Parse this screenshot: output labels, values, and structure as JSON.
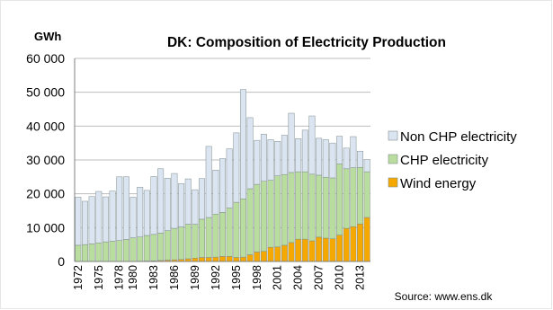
{
  "chart_data": {
    "type": "bar",
    "stacked": true,
    "title": "DK: Composition of Electricity Production",
    "ylabel": "GWh",
    "xlabel": "",
    "ylim": [
      0,
      60000
    ],
    "yticks": [
      0,
      10000,
      20000,
      30000,
      40000,
      50000,
      60000
    ],
    "ytick_labels": [
      "0",
      "10 000",
      "20 000",
      "30 000",
      "40 000",
      "50 000",
      "60 000"
    ],
    "grid": true,
    "legend_position": "right",
    "source": "Source: www.ens.dk",
    "categories": [
      "1972",
      "1973",
      "1974",
      "1975",
      "1976",
      "1977",
      "1978",
      "1979",
      "1980",
      "1981",
      "1982",
      "1983",
      "1984",
      "1985",
      "1986",
      "1987",
      "1988",
      "1989",
      "1990",
      "1991",
      "1992",
      "1993",
      "1994",
      "1995",
      "1996",
      "1997",
      "1998",
      "1999",
      "2000",
      "2001",
      "2002",
      "2003",
      "2004",
      "2005",
      "2006",
      "2007",
      "2008",
      "2009",
      "2010",
      "2011",
      "2012",
      "2013",
      "2014"
    ],
    "xtick_labels": [
      "1972",
      "1975",
      "1978",
      "1980",
      "1983",
      "1986",
      "1989",
      "1992",
      "1995",
      "1998",
      "2001",
      "2004",
      "2007",
      "2010",
      "2013"
    ],
    "series": [
      {
        "name": "Wind energy",
        "color": "#f5a800",
        "values": [
          0,
          0,
          0,
          0,
          0,
          0,
          10,
          20,
          50,
          100,
          150,
          200,
          300,
          400,
          500,
          600,
          800,
          1000,
          1200,
          1200,
          1300,
          1500,
          1500,
          1200,
          1300,
          2000,
          2800,
          3000,
          4200,
          4300,
          4800,
          5600,
          6600,
          6600,
          6100,
          7200,
          6900,
          6700,
          7800,
          9800,
          10300,
          11100,
          13000
        ]
      },
      {
        "name": "CHP electricity",
        "color": "#b9dd9f",
        "values": [
          4800,
          5000,
          5200,
          5500,
          5800,
          6000,
          6200,
          6500,
          6950,
          7150,
          7550,
          7800,
          8100,
          8700,
          9300,
          9600,
          10200,
          10000,
          11300,
          11800,
          12700,
          13000,
          14300,
          16300,
          17200,
          19500,
          20000,
          20700,
          19800,
          21000,
          20900,
          20700,
          19900,
          19900,
          19700,
          18300,
          18000,
          18000,
          21000,
          17600,
          17400,
          16700,
          13500
        ]
      },
      {
        "name": "Non CHP electricity",
        "color": "#dbe5f2",
        "values": [
          14200,
          12800,
          14000,
          15200,
          13300,
          14800,
          18800,
          18500,
          12000,
          14700,
          13300,
          17100,
          19000,
          15500,
          16200,
          12800,
          13400,
          10200,
          12000,
          21000,
          13000,
          15900,
          17500,
          20500,
          32300,
          21000,
          13000,
          13900,
          12000,
          10200,
          11600,
          17500,
          9800,
          12300,
          17200,
          10900,
          11100,
          10300,
          8200,
          6100,
          9200,
          4800,
          3600
        ]
      }
    ],
    "legend_order": [
      "Non CHP electricity",
      "CHP electricity",
      "Wind energy"
    ]
  }
}
